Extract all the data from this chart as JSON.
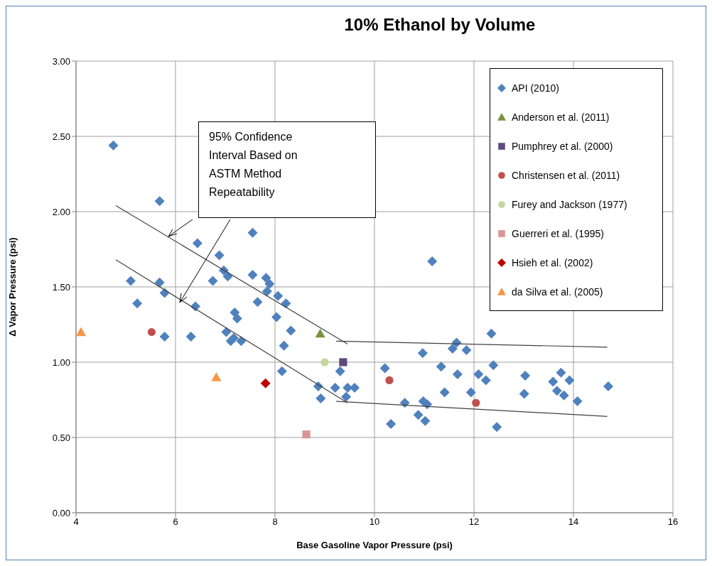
{
  "chart_data": {
    "type": "scatter",
    "title": "10% Ethanol by Volume",
    "xlabel": "Base Gasoline Vapor Pressure (psi)",
    "ylabel": "Δ Vapor Pressure (psi)",
    "xlim": [
      4,
      16
    ],
    "xticks": [
      4,
      6,
      8,
      10,
      12,
      14,
      16
    ],
    "ylim": [
      0,
      3
    ],
    "yticks": [
      {
        "value": 0,
        "label": "0.00"
      },
      {
        "value": 0.5,
        "label": "0.50"
      },
      {
        "value": 1,
        "label": "1.00"
      },
      {
        "value": 1.5,
        "label": "1.50"
      },
      {
        "value": 2,
        "label": "2.00"
      },
      {
        "value": 2.5,
        "label": "2.50"
      },
      {
        "value": 3,
        "label": "3.00"
      }
    ],
    "grid": true,
    "legend": "top right",
    "annotations": [
      "95% Confidence Interval  Based on ASTM Method Repeatability"
    ],
    "series": [
      {
        "name": "API (2010)",
        "color": "#4f81bd",
        "marker": "diamond",
        "x": [
          4.75,
          5.68,
          5.1,
          5.68,
          5.78,
          5.23,
          5.78,
          6.4,
          6.31,
          6.44,
          6.88,
          6.97,
          7.05,
          6.75,
          7.55,
          7.55,
          7.82,
          7.89,
          7.84,
          8.06,
          8.22,
          7.65,
          7.19,
          7.24,
          8.03,
          8.32,
          7.02,
          7.17,
          7.11,
          7.32,
          8.18,
          8.14,
          11.16,
          8.87,
          8.92,
          9.21,
          9.46,
          9.6,
          9.43,
          9.31,
          10.21,
          10.33,
          10.61,
          10.88,
          11.02,
          10.98,
          11.06,
          10.97,
          11.34,
          11.41,
          11.67,
          11.57,
          11.65,
          11.85,
          11.94,
          12.09,
          12.24,
          12.35,
          12.39,
          12.46,
          13.03,
          13.01,
          13.59,
          13.75,
          13.92,
          13.67,
          13.81,
          14.08,
          14.7
        ],
        "values": [
          2.44,
          2.07,
          1.54,
          1.53,
          1.46,
          1.39,
          1.17,
          1.37,
          1.17,
          1.79,
          1.71,
          1.61,
          1.57,
          1.54,
          1.86,
          1.58,
          1.56,
          1.52,
          1.47,
          1.44,
          1.39,
          1.4,
          1.33,
          1.29,
          1.3,
          1.21,
          1.2,
          1.16,
          1.14,
          1.14,
          1.11,
          0.94,
          1.67,
          0.84,
          0.76,
          0.83,
          0.83,
          0.83,
          0.77,
          0.94,
          0.96,
          0.59,
          0.73,
          0.65,
          0.61,
          0.74,
          0.72,
          1.06,
          0.97,
          0.8,
          0.92,
          1.09,
          1.13,
          1.08,
          0.8,
          0.92,
          0.88,
          1.19,
          0.98,
          0.57,
          0.91,
          0.79,
          0.87,
          0.93,
          0.88,
          0.81,
          0.78,
          0.74,
          0.84
        ]
      },
      {
        "name": "Anderson et al. (2011)",
        "color": "#77933c",
        "marker": "triangle",
        "x": [
          8.91
        ],
        "values": [
          1.19
        ]
      },
      {
        "name": "Pumphrey et al. (2000)",
        "color": "#604a7b",
        "marker": "square",
        "x": [
          9.37
        ],
        "values": [
          1.0
        ]
      },
      {
        "name": "Christensen et al. (2011)",
        "color": "#c0504d",
        "marker": "circle",
        "x": [
          5.52,
          10.3,
          12.04
        ],
        "values": [
          1.2,
          0.88,
          0.73
        ]
      },
      {
        "name": "Furey and Jackson (1977)",
        "color": "#c3d69b",
        "marker": "circle",
        "x": [
          9.0
        ],
        "values": [
          1.0
        ]
      },
      {
        "name": "Guerreri et al.  (1995)",
        "color": "#d99694",
        "marker": "square",
        "x": [
          8.63
        ],
        "values": [
          0.52
        ]
      },
      {
        "name": "Hsieh et al. (2002)",
        "color": "#c00000",
        "marker": "diamond",
        "x": [
          7.81
        ],
        "values": [
          0.86
        ]
      },
      {
        "name": "da Silva et al. (2005)",
        "color": "#f79646",
        "marker": "triangle",
        "x": [
          4.1,
          6.82
        ],
        "values": [
          1.2,
          0.9
        ]
      },
      {
        "type": "line",
        "color": "#404040",
        "marker": "none",
        "x": [
          4.8,
          9.46
        ],
        "values": [
          2.04,
          1.12
        ]
      },
      {
        "type": "line",
        "color": "#404040",
        "marker": "none",
        "x": [
          9.23,
          14.68
        ],
        "values": [
          1.14,
          1.1
        ]
      },
      {
        "type": "line",
        "color": "#404040",
        "marker": "none",
        "x": [
          4.8,
          9.46
        ],
        "values": [
          1.68,
          0.73
        ]
      },
      {
        "type": "line",
        "color": "#404040",
        "marker": "none",
        "x": [
          9.23,
          14.68
        ],
        "values": [
          0.74,
          0.64
        ]
      }
    ]
  }
}
